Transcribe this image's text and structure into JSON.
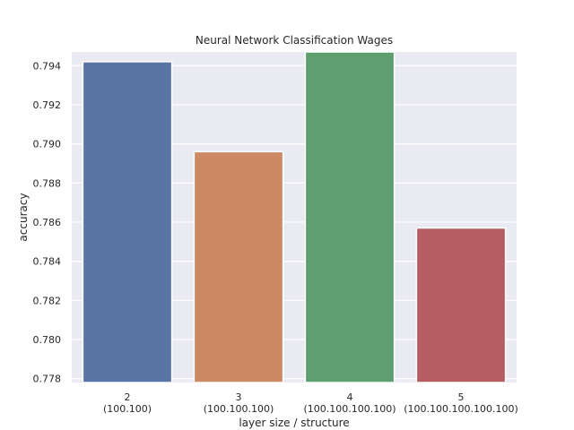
{
  "chart_data": {
    "type": "bar",
    "title": "Neural Network Classification Wages",
    "xlabel": "layer size / structure",
    "ylabel": "accuracy",
    "categories": [
      {
        "layers": "2",
        "structure": "(100.100)"
      },
      {
        "layers": "3",
        "structure": "(100.100.100)"
      },
      {
        "layers": "4",
        "structure": "(100.100.100.100)"
      },
      {
        "layers": "5",
        "structure": "(100.100.100.100.100)"
      }
    ],
    "values": [
      0.7942,
      0.7896,
      0.7947,
      0.7857
    ],
    "ylim": [
      0.7778,
      0.7947
    ],
    "yticks": [
      "0.778",
      "0.780",
      "0.782",
      "0.784",
      "0.786",
      "0.788",
      "0.790",
      "0.792",
      "0.794"
    ],
    "grid": true,
    "legend": "none",
    "colors": [
      "#5875a4",
      "#cc8963",
      "#5f9e6e",
      "#b55d60"
    ],
    "background": "#eaeaf2"
  }
}
